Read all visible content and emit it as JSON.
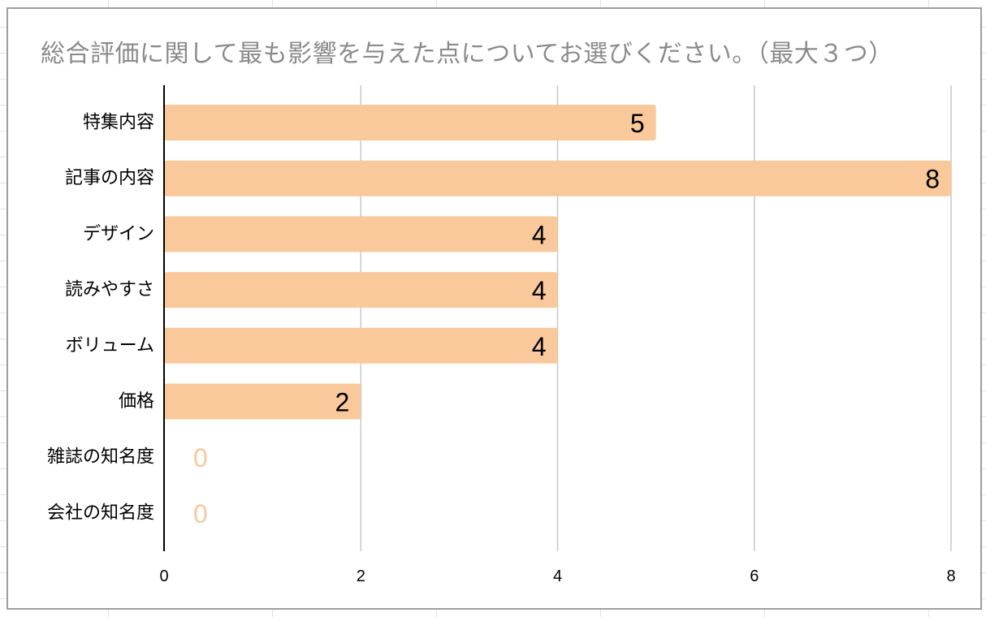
{
  "chart_data": {
    "type": "bar",
    "orientation": "horizontal",
    "title": "総合評価に関して最も影響を与えた点についてお選びください。（最大３つ）",
    "xlabel": "",
    "ylabel": "",
    "categories": [
      "特集内容",
      "記事の内容",
      "デザイン",
      "読みやすさ",
      "ボリューム",
      "価格",
      "雑誌の知名度",
      "会社の知名度"
    ],
    "values": [
      5,
      8,
      4,
      4,
      4,
      2,
      0,
      0
    ],
    "xlim": [
      0,
      8
    ],
    "xticks": [
      "0",
      "2",
      "4",
      "6",
      "8"
    ],
    "data_labels": true,
    "grid": "vertical",
    "legend": "none",
    "colors": {
      "bar": "#f9c89b",
      "zero_label": "#f9c89b",
      "label": "#000000",
      "grid": "#c8c8c8",
      "axis": "#000000",
      "title": "#8a8a8a"
    }
  }
}
